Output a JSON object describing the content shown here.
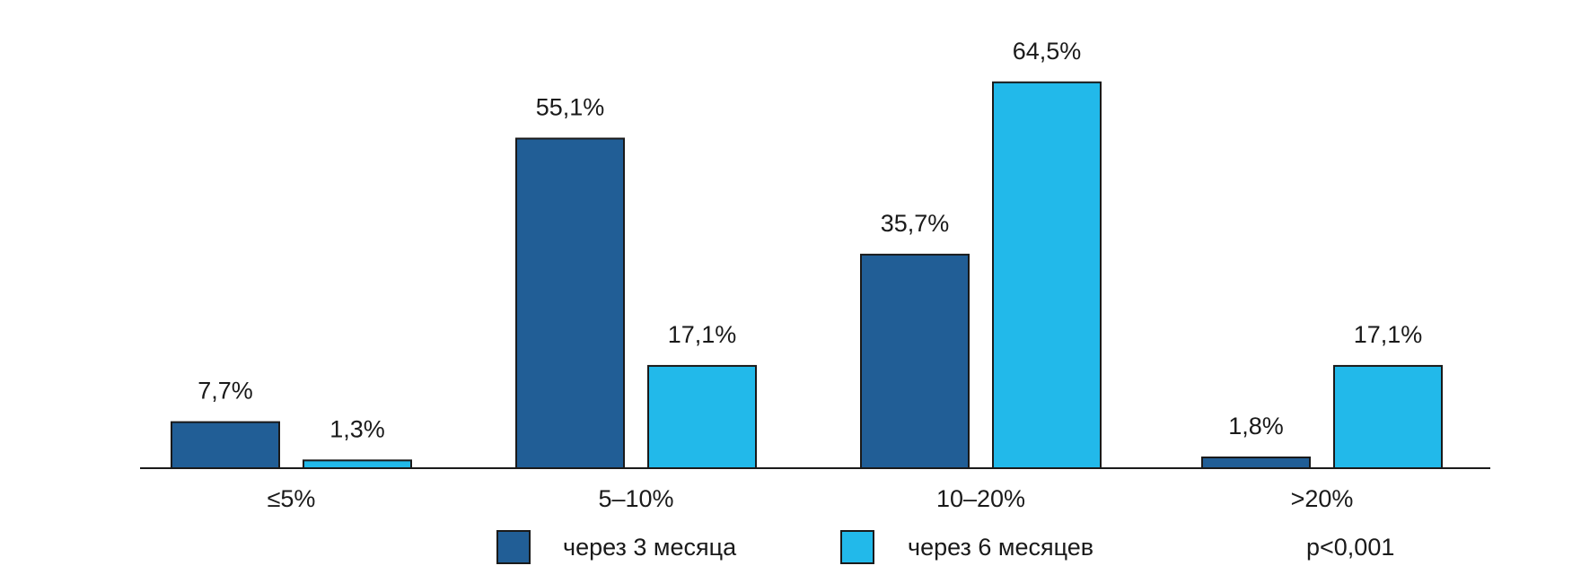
{
  "chart_data": {
    "type": "bar",
    "categories": [
      "≤5%",
      "5–10%",
      "10–20%",
      ">20%"
    ],
    "series": [
      {
        "name": "через 3 месяца",
        "color": "#215e96",
        "values": [
          7.7,
          55.1,
          35.7,
          1.8
        ],
        "labels": [
          "7,7%",
          "55,1%",
          "35,7%",
          "1,8%"
        ]
      },
      {
        "name": "через 6 месяцев",
        "color": "#22b9ea",
        "values": [
          1.3,
          17.1,
          64.5,
          17.1
        ],
        "labels": [
          "1,3%",
          "17,1%",
          "64,5%",
          "17,1%"
        ]
      }
    ],
    "ylim": [
      0,
      70
    ],
    "grid": false,
    "legend_position": "bottom",
    "annotation": "p<0,001"
  }
}
